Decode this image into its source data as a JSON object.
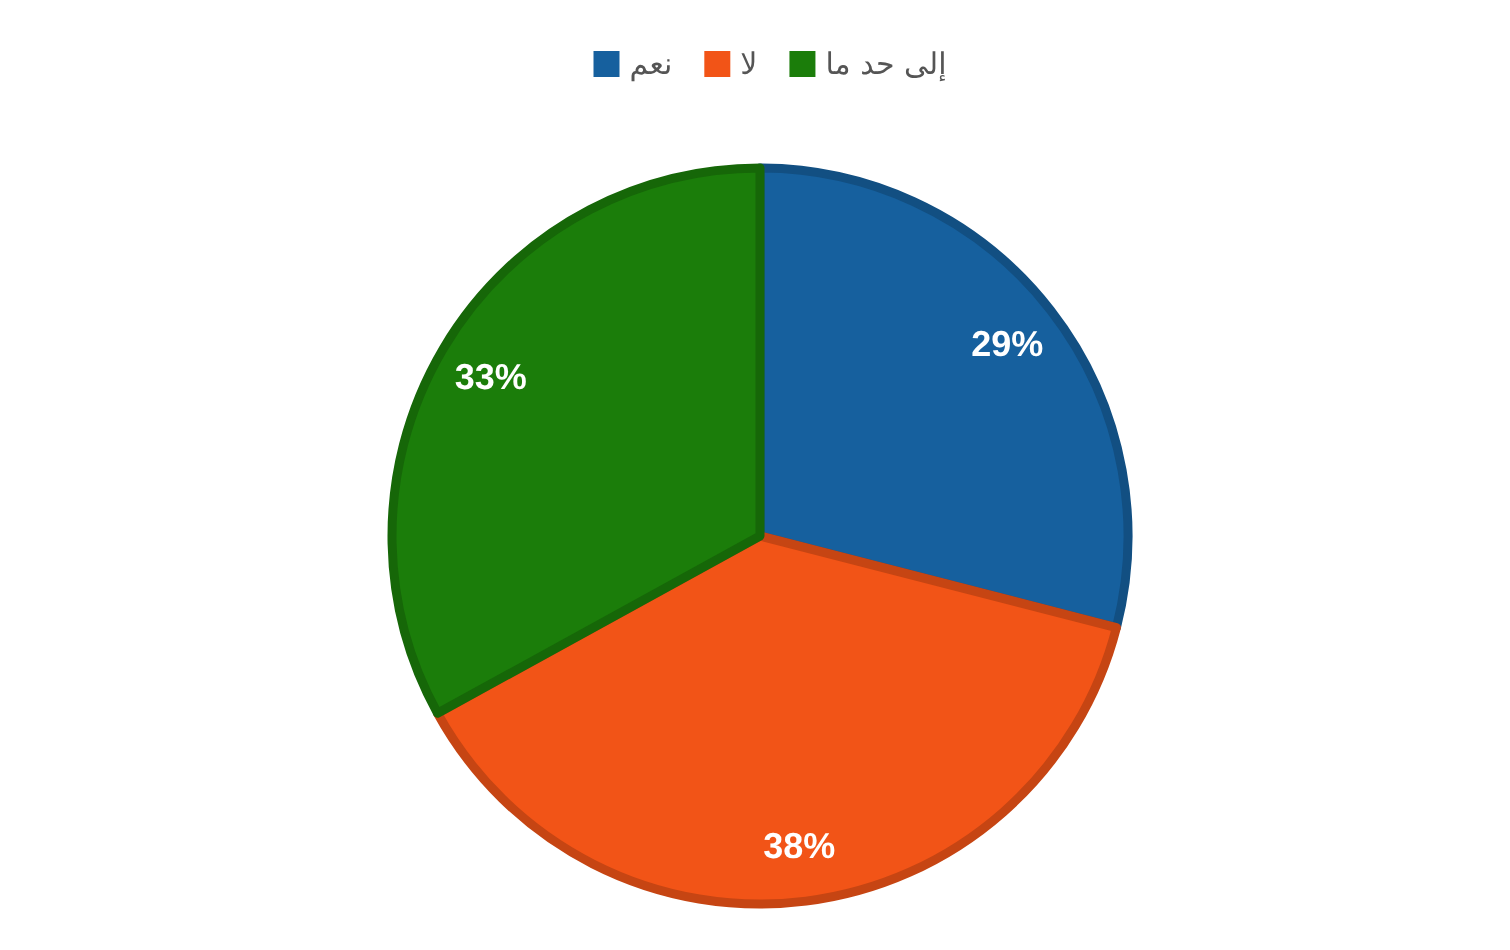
{
  "chart_data": {
    "type": "pie",
    "categories": [
      "نعم",
      "لا",
      "إلى حد ما"
    ],
    "values": [
      29,
      38,
      33
    ],
    "colors": [
      "#16609e",
      "#f25417",
      "#1b7d0a"
    ],
    "value_labels": [
      "29%",
      "38%",
      "33%"
    ],
    "legend": "top"
  }
}
